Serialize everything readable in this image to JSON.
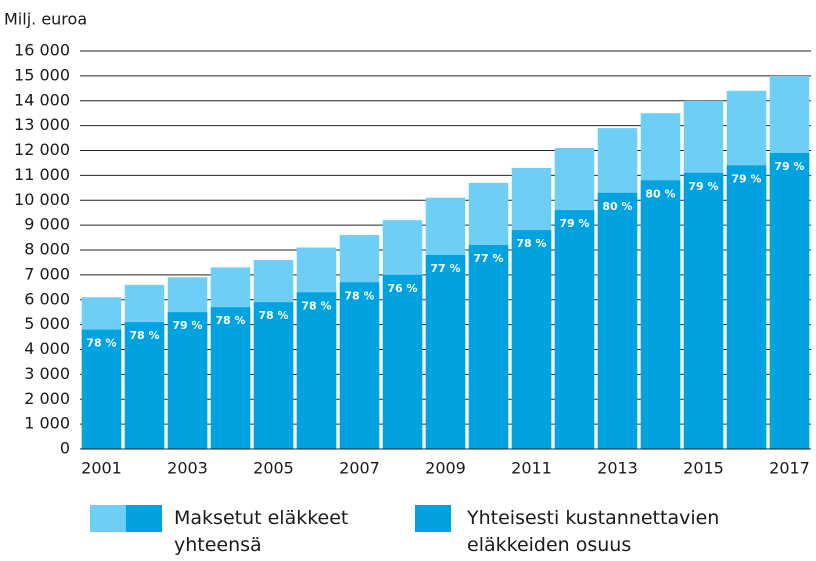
{
  "chart_data": {
    "type": "bar",
    "y_label": "Milj. euroa",
    "categories": [
      "2001",
      null,
      "2003",
      null,
      "2005",
      null,
      "2007",
      null,
      "2009",
      null,
      "2011",
      null,
      "2013",
      null,
      "2015",
      null,
      "2017"
    ],
    "series": [
      {
        "name": "Maksetut eläkkeet yhteensä",
        "color": "#6dcff6",
        "values": [
          6100,
          6600,
          6900,
          7300,
          7600,
          8100,
          8600,
          9200,
          10100,
          10700,
          11300,
          12100,
          12900,
          13500,
          14000,
          14400,
          15000
        ]
      },
      {
        "name": "Yhteisesti kustannettavien eläkkeiden osuus",
        "color": "#00a3e0",
        "values": [
          4800,
          5100,
          5500,
          5700,
          5900,
          6300,
          6700,
          7000,
          7800,
          8200,
          8800,
          9600,
          10300,
          10800,
          11100,
          11400,
          11900
        ]
      }
    ],
    "shares": {
      "values": [
        78,
        78,
        79,
        78,
        78,
        78,
        78,
        76,
        77,
        77,
        78,
        79,
        80,
        80,
        79,
        79,
        79
      ],
      "value_labels": [
        "78 %",
        "78 %",
        "79 %",
        "78 %",
        "78 %",
        "78 %",
        "78 %",
        "76 %",
        "77 %",
        "77 %",
        "78 %",
        "79 %",
        "80 %",
        "80 %",
        "79 %",
        "79 %",
        "79 %"
      ]
    },
    "ylim": [
      0,
      16000
    ],
    "yticks": [
      0,
      {
        "value": 1000,
        "label": "1 000"
      },
      {
        "value": 2000,
        "label": "2 000"
      },
      {
        "value": 3000,
        "label": "3 000"
      },
      {
        "value": 4000,
        "label": "4 000"
      },
      {
        "value": 5000,
        "label": "5 000"
      },
      {
        "value": 6000,
        "label": "6 000"
      },
      {
        "value": 7000,
        "label": "7 000"
      },
      {
        "value": 8000,
        "label": "8 000"
      },
      {
        "value": 9000,
        "label": "9 000"
      },
      {
        "value": 10000,
        "label": "10 000"
      },
      {
        "value": 11000,
        "label": "11 000"
      },
      {
        "value": 12000,
        "label": "12 000"
      },
      {
        "value": 13000,
        "label": "13 000"
      },
      {
        "value": 14000,
        "label": "14 000"
      },
      {
        "value": 15000,
        "label": "15 000"
      },
      {
        "value": 16000,
        "label": "16 000"
      }
    ],
    "grid": true
  }
}
